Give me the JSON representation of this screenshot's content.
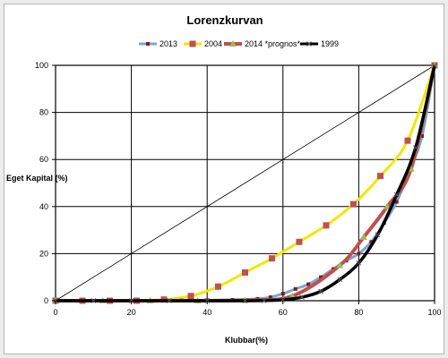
{
  "chart_data": {
    "type": "line",
    "title": "Lorenzkurvan",
    "xlabel": "Klubbar(%)",
    "ylabel": "Eget Kapital (%)",
    "xlim": [
      0,
      100
    ],
    "ylim": [
      0,
      100
    ],
    "x_ticks": [
      0,
      20,
      40,
      60,
      80,
      100
    ],
    "y_ticks": [
      0,
      20,
      40,
      60,
      80,
      100
    ],
    "grid": true,
    "legend_position": "top",
    "equality_line": {
      "x": [
        0,
        100
      ],
      "y": [
        0,
        100
      ],
      "color": "#000000"
    },
    "series": [
      {
        "name": "2013",
        "color": "#7aa7d6",
        "marker_color": "#7a1e1e",
        "x": [
          0,
          6.7,
          13.3,
          20,
          26.7,
          33.3,
          40,
          46.7,
          53.3,
          56.7,
          60,
          63.3,
          66.7,
          70,
          73.3,
          76.7,
          80,
          83.3,
          86.7,
          90,
          93.3,
          96.7,
          100
        ],
        "y": [
          0,
          0,
          0,
          0,
          0,
          0.1,
          0.2,
          0.4,
          0.8,
          1.5,
          3,
          5,
          7,
          10,
          13.5,
          17,
          20,
          25,
          33,
          42,
          55,
          70,
          100
        ]
      },
      {
        "name": "2004",
        "color": "#f2e600",
        "marker_color": "#c0504d",
        "x": [
          0,
          7.1,
          14.3,
          21.4,
          28.6,
          35.7,
          42.9,
          50,
          57.1,
          64.3,
          71.4,
          78.6,
          85.7,
          92.9,
          100
        ],
        "y": [
          0,
          0,
          0,
          0,
          0.5,
          2,
          6,
          12,
          18,
          25,
          32,
          41,
          53,
          68,
          100
        ]
      },
      {
        "name": "2014 *prognos*",
        "color": "#c0504d",
        "marker_color": "#9bbb59",
        "x": [
          0,
          12.5,
          25,
          37.5,
          50,
          62.5,
          75,
          81.3,
          87.5,
          93.8,
          100
        ],
        "y": [
          0,
          0,
          0,
          0,
          0.2,
          2,
          15,
          27,
          40,
          56,
          100
        ]
      },
      {
        "name": "1999",
        "color": "#000000",
        "marker_color": "#555555",
        "x": [
          0,
          10,
          20,
          30,
          40,
          50,
          55,
          60,
          65,
          70,
          75,
          80,
          85,
          90,
          95,
          100
        ],
        "y": [
          0,
          0,
          0,
          0,
          0,
          0,
          0.1,
          0.4,
          1.5,
          4,
          9,
          16,
          28,
          45,
          65,
          100
        ]
      }
    ]
  }
}
